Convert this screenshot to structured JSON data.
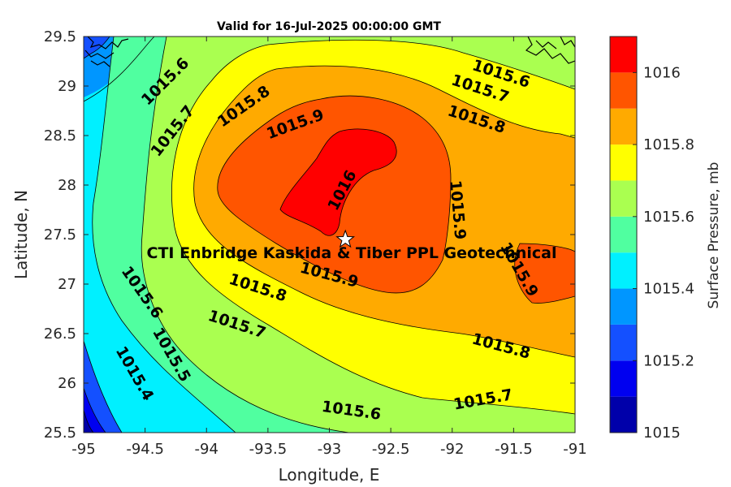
{
  "chart_data": {
    "type": "contour-map",
    "title": "Valid for 16-Jul-2025 00:00:00 GMT",
    "xlabel": "Longitude, E",
    "ylabel": "Latitude, N",
    "xlim": [
      -95,
      -91
    ],
    "ylim": [
      25.5,
      29.5
    ],
    "x_ticks": [
      "-95",
      "-94.5",
      "-94",
      "-93.5",
      "-93",
      "-92.5",
      "-92",
      "-91.5",
      "-91"
    ],
    "y_ticks": [
      "25.5",
      "26",
      "26.5",
      "27",
      "27.5",
      "28",
      "28.5",
      "29",
      "29.5"
    ],
    "colorbar": {
      "label": "Surface Pressure, mb",
      "range": [
        1015,
        1016.1
      ],
      "ticks": [
        "1015",
        "1015.2",
        "1015.4",
        "1015.6",
        "1015.8",
        "1016"
      ],
      "levels": [
        1015,
        1015.1,
        1015.2,
        1015.3,
        1015.4,
        1015.5,
        1015.6,
        1015.7,
        1015.8,
        1015.9,
        1016,
        1016.1
      ],
      "colors": [
        "#0000aa",
        "#0000f0",
        "#1450ff",
        "#0096ff",
        "#00f0ff",
        "#50ffa0",
        "#aaff50",
        "#ffff00",
        "#ffaa00",
        "#ff5500",
        "#ff0000",
        "#aa0000"
      ]
    },
    "contour_labels": [
      {
        "text": "1015.6",
        "lon": -94.34,
        "lat": 29.05
      },
      {
        "text": "1015.7",
        "lon": -94.28,
        "lat": 28.55
      },
      {
        "text": "1015.8",
        "lon": -93.7,
        "lat": 28.8
      },
      {
        "text": "1015.9",
        "lon": -93.28,
        "lat": 28.62
      },
      {
        "text": "1016",
        "lon": -92.9,
        "lat": 27.95
      },
      {
        "text": "1015.6",
        "lon": -91.6,
        "lat": 29.13
      },
      {
        "text": "1015.7",
        "lon": -91.77,
        "lat": 28.98
      },
      {
        "text": "1015.8",
        "lon": -91.8,
        "lat": 28.67
      },
      {
        "text": "1015.9",
        "lon": -91.95,
        "lat": 27.75
      },
      {
        "text": "1015.9",
        "lon": -93.0,
        "lat": 27.1
      },
      {
        "text": "1015.8",
        "lon": -93.58,
        "lat": 26.97
      },
      {
        "text": "1015.7",
        "lon": -93.75,
        "lat": 26.6
      },
      {
        "text": "1015.6",
        "lon": -94.52,
        "lat": 26.92
      },
      {
        "text": "1015.5",
        "lon": -94.28,
        "lat": 26.29
      },
      {
        "text": "1015.4",
        "lon": -94.58,
        "lat": 26.1
      },
      {
        "text": "1015.9",
        "lon": -91.45,
        "lat": 27.15
      },
      {
        "text": "1015.8",
        "lon": -91.6,
        "lat": 26.38
      },
      {
        "text": "1015.7",
        "lon": -91.75,
        "lat": 25.84
      },
      {
        "text": "1015.6",
        "lon": -92.82,
        "lat": 25.73
      }
    ],
    "site": {
      "label": "CTI Enbridge  Kaskida & Tiber PPL Geotechnical",
      "lon": -92.87,
      "lat": 27.45
    }
  }
}
